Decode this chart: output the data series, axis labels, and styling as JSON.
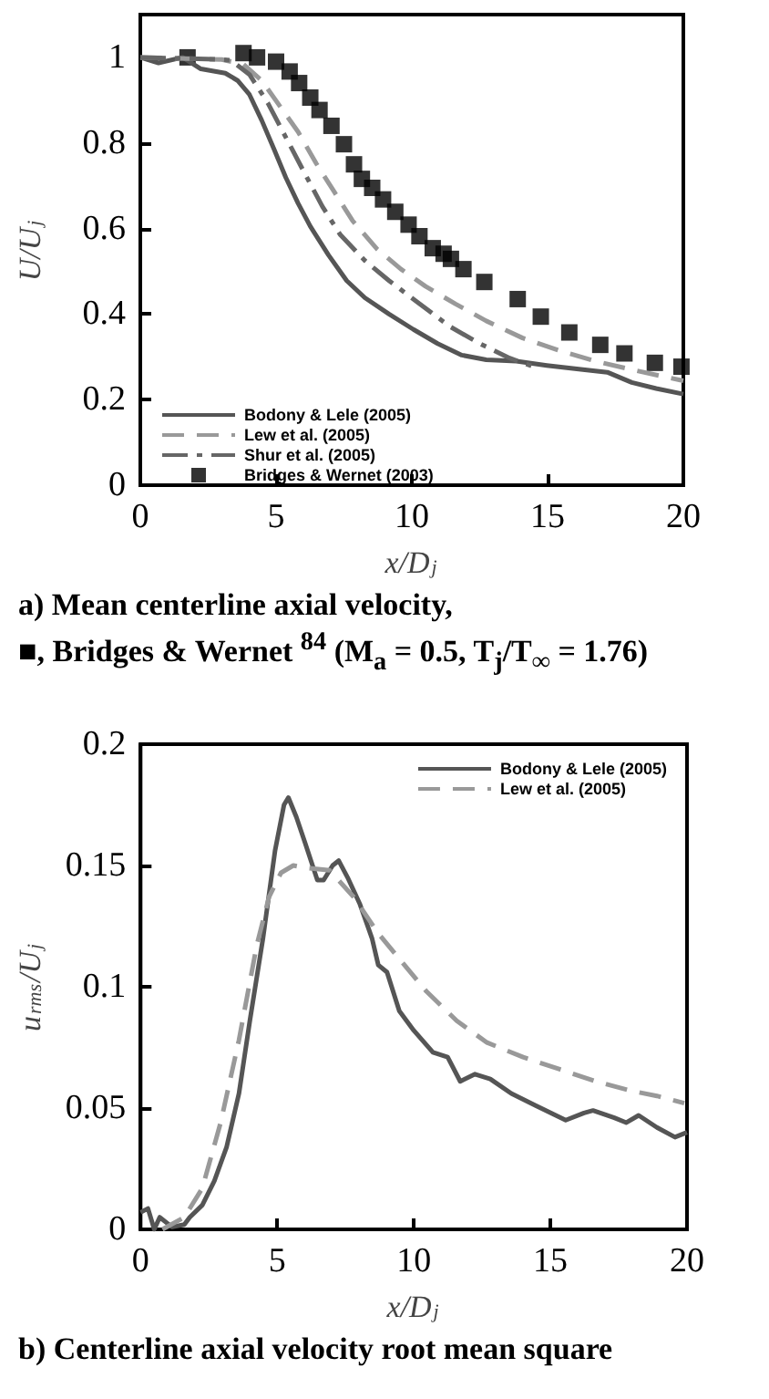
{
  "chart_data": [
    {
      "type": "line",
      "xlabel": "x/D$_{j}$",
      "ylabel": "U/U$_{j}$",
      "xlim": [
        0,
        20
      ],
      "xticks": [
        0,
        5,
        10,
        15,
        20
      ],
      "ylim": [
        0,
        1.1
      ],
      "yticks": [
        0,
        0.2,
        0.4,
        0.6,
        0.8,
        1
      ],
      "grid": false,
      "legend": "bottom left",
      "marker": "none",
      "annotations": [
        "a) Mean centerline axial velocity,",
        "■, Bridges & Wernet $^{84}$ (M$_{a}$ = 0.5,  T$_{j}$/T$_{∞}$ = 1.76)"
      ],
      "series": [
        {
          "name": "Bodony & Lele (2005)",
          "color": "#555555",
          "line_style": "solid",
          "x": [
            0,
            0.67,
            1.56,
            2.23,
            3.13,
            3.58,
            4.02,
            4.47,
            4.92,
            5.36,
            5.81,
            6.26,
            6.93,
            7.6,
            8.27,
            9.16,
            10.06,
            10.95,
            11.84,
            12.74,
            13.85,
            14.97,
            16.3,
            17.2,
            18.1,
            19.0,
            20
          ],
          "values": [
            1.0,
            0.987,
            1.0,
            0.973,
            0.963,
            0.946,
            0.913,
            0.853,
            0.786,
            0.719,
            0.659,
            0.605,
            0.538,
            0.478,
            0.438,
            0.4,
            0.364,
            0.331,
            0.304,
            0.293,
            0.29,
            0.28,
            0.27,
            0.264,
            0.24,
            0.226,
            0.213
          ]
        },
        {
          "name": "Lew et al. (2005)",
          "color": "#999999",
          "line_style": "dashed",
          "x": [
            0,
            3.0,
            3.8,
            4.47,
            5.14,
            5.81,
            6.48,
            7.15,
            7.82,
            8.72,
            9.6,
            10.5,
            11.6,
            12.74,
            14.08,
            15.42,
            16.76,
            18.1,
            20
          ],
          "values": [
            1.0,
            0.995,
            0.984,
            0.946,
            0.886,
            0.826,
            0.752,
            0.685,
            0.618,
            0.552,
            0.505,
            0.465,
            0.424,
            0.384,
            0.344,
            0.315,
            0.29,
            0.27,
            0.244
          ]
        },
        {
          "name": "Shur et al. (2005)",
          "color": "#666666",
          "line_style": "dashdot",
          "x": [
            0,
            3.0,
            3.35,
            4.02,
            4.7,
            5.36,
            6.03,
            6.7,
            7.37,
            8.27,
            9.16,
            10.28,
            11.4,
            12.5,
            13.6,
            14.5
          ],
          "values": [
            1.0,
            0.995,
            0.993,
            0.96,
            0.893,
            0.813,
            0.732,
            0.652,
            0.585,
            0.525,
            0.478,
            0.424,
            0.371,
            0.331,
            0.297,
            0.277
          ]
        },
        {
          "name": "Bridges & Wernet (2003)",
          "color": "#000000",
          "type": "scatter",
          "marker": "square",
          "x": [
            1.74,
            3.8,
            4.3,
            5.0,
            5.5,
            5.85,
            6.26,
            6.6,
            7.04,
            7.5,
            7.87,
            8.16,
            8.54,
            8.94,
            9.39,
            9.88,
            10.28,
            10.77,
            11.17,
            11.44,
            11.9,
            12.67,
            13.9,
            14.75,
            15.8,
            16.94,
            17.83,
            18.95,
            19.93
          ],
          "values": [
            1.0,
            1.01,
            1.0,
            0.99,
            0.967,
            0.94,
            0.906,
            0.877,
            0.84,
            0.797,
            0.75,
            0.716,
            0.695,
            0.668,
            0.639,
            0.609,
            0.582,
            0.554,
            0.541,
            0.529,
            0.505,
            0.475,
            0.435,
            0.394,
            0.357,
            0.328,
            0.308,
            0.286,
            0.277
          ]
        }
      ]
    },
    {
      "type": "line",
      "xlabel": "x/D$_{j}$",
      "ylabel": "u$_{rms}$/U$_{j}$",
      "xlim": [
        0,
        20
      ],
      "xticks": [
        0,
        5,
        10,
        15,
        20
      ],
      "ylim": [
        0,
        0.2
      ],
      "yticks": [
        0,
        0.05,
        0.1,
        0.15,
        0.2
      ],
      "grid": false,
      "legend": "top right",
      "marker": "none",
      "annotations": [
        "b) Centerline axial velocity root mean square"
      ],
      "series": [
        {
          "name": "Bodony & Lele (2005)",
          "color": "#555555",
          "line_style": "solid",
          "x": [
            0,
            0.27,
            0.5,
            0.7,
            1.15,
            1.6,
            1.8,
            2.26,
            2.7,
            3.15,
            3.6,
            4.0,
            4.48,
            4.92,
            5.25,
            5.41,
            5.7,
            6.03,
            6.47,
            6.7,
            7.03,
            7.25,
            7.58,
            8.03,
            8.47,
            8.7,
            9.02,
            9.47,
            10.0,
            10.7,
            11.24,
            11.7,
            12.24,
            12.8,
            13.57,
            14.46,
            15.56,
            16.23,
            16.56,
            17.34,
            17.78,
            18.23,
            18.9,
            19.56,
            20
          ],
          "values": [
            0.007,
            0.0086,
            0,
            0.005,
            0.001,
            0.002,
            0.005,
            0.01,
            0.02,
            0.034,
            0.056,
            0.086,
            0.12,
            0.156,
            0.175,
            0.178,
            0.17,
            0.159,
            0.144,
            0.144,
            0.15,
            0.152,
            0.145,
            0.134,
            0.12,
            0.109,
            0.106,
            0.09,
            0.082,
            0.073,
            0.071,
            0.061,
            0.064,
            0.062,
            0.056,
            0.051,
            0.045,
            0.048,
            0.049,
            0.046,
            0.044,
            0.047,
            0.042,
            0.038,
            0.04
          ]
        },
        {
          "name": "Lew et al. (2005)",
          "color": "#999999",
          "line_style": "dashed",
          "x": [
            0.8,
            1.6,
            2.26,
            2.93,
            3.6,
            4.25,
            4.7,
            5.14,
            5.59,
            6.03,
            6.92,
            7.8,
            8.7,
            9.58,
            10.47,
            11.57,
            12.68,
            14.0,
            15.34,
            16.67,
            18.0,
            18.9,
            19.9
          ],
          "values": [
            0,
            0.005,
            0.017,
            0.044,
            0.078,
            0.117,
            0.137,
            0.147,
            0.15,
            0.149,
            0.148,
            0.137,
            0.122,
            0.11,
            0.098,
            0.086,
            0.077,
            0.071,
            0.066,
            0.061,
            0.057,
            0.055,
            0.052
          ]
        }
      ]
    }
  ]
}
